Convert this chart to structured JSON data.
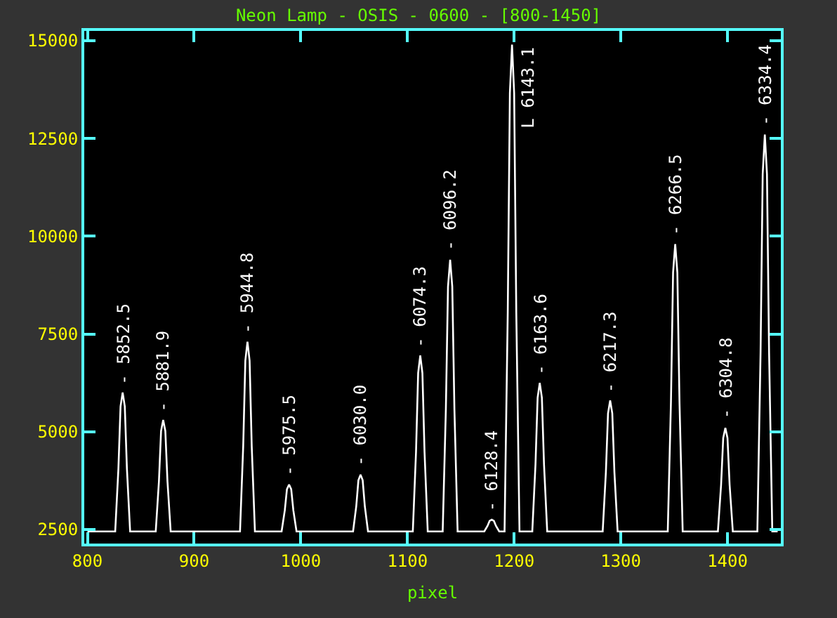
{
  "chart_data": {
    "type": "line",
    "title": "Neon Lamp - OSIS - 0600 - [800-1450]",
    "xlabel": "pixel",
    "x": [
      800,
      826,
      829,
      831,
      833,
      835,
      837,
      840,
      864,
      867,
      869,
      871,
      873,
      875,
      878,
      943,
      946,
      948,
      950,
      952,
      954,
      957,
      982,
      985,
      987,
      989,
      991,
      993,
      996,
      1049,
      1052,
      1054,
      1056,
      1058,
      1060,
      1063,
      1105,
      1108,
      1110,
      1112,
      1114,
      1116,
      1119,
      1133,
      1136,
      1138,
      1140,
      1142,
      1144,
      1147,
      1172,
      1175,
      1177,
      1179,
      1181,
      1183,
      1186,
      1191,
      1194,
      1196,
      1198,
      1200,
      1202,
      1205,
      1217,
      1220,
      1222,
      1224,
      1226,
      1228,
      1231,
      1283,
      1286,
      1288,
      1290,
      1292,
      1294,
      1297,
      1344,
      1347,
      1349,
      1351,
      1353,
      1355,
      1358,
      1391,
      1394,
      1396,
      1398,
      1400,
      1402,
      1405,
      1428,
      1431,
      1433,
      1435,
      1437,
      1439,
      1442,
      1447
    ],
    "series": [
      {
        "color": "#ffffff",
        "values": [
          2450,
          2450,
          4050,
          5650,
          6000,
          5650,
          4050,
          2450,
          2450,
          3730,
          5020,
          5300,
          5020,
          3730,
          2450,
          2450,
          4630,
          6820,
          7300,
          6820,
          4630,
          2450,
          2450,
          2990,
          3530,
          3650,
          3530,
          2990,
          2450,
          2450,
          3100,
          3760,
          3900,
          3760,
          3100,
          2450,
          2450,
          4480,
          6500,
          6950,
          6500,
          4480,
          2450,
          2450,
          5580,
          8710,
          9400,
          8710,
          5580,
          2450,
          2450,
          2590,
          2720,
          2750,
          2720,
          2590,
          2450,
          2450,
          8050,
          13660,
          14900,
          13660,
          8050,
          2450,
          2450,
          4160,
          5870,
          6250,
          5870,
          4160,
          2450,
          2450,
          3960,
          5470,
          5800,
          5470,
          3960,
          2450,
          2450,
          5760,
          9070,
          9800,
          9070,
          5760,
          2450,
          2450,
          3640,
          4840,
          5100,
          4840,
          3640,
          2450,
          2450,
          7020,
          11590,
          12600,
          11590,
          7020,
          2450,
          2450
        ]
      }
    ],
    "xlim": [
      797,
      1450
    ],
    "ylim": [
      2140,
      15250
    ],
    "xticks": [
      800,
      900,
      1000,
      1100,
      1200,
      1300,
      1400
    ],
    "yticks": [
      2500,
      5000,
      7500,
      10000,
      12500,
      15000
    ],
    "marker": "none",
    "line_style": "solid",
    "annotations": [
      {
        "text": "- 5852.5",
        "x": 833,
        "y": 6000
      },
      {
        "text": "- 5881.9",
        "x": 871,
        "y": 5300
      },
      {
        "text": "- 5944.8",
        "x": 950,
        "y": 7300
      },
      {
        "text": "- 5975.5",
        "x": 989,
        "y": 3650
      },
      {
        "text": "- 6030.0",
        "x": 1056,
        "y": 3900
      },
      {
        "text": "- 6074.3",
        "x": 1112,
        "y": 6950
      },
      {
        "text": "- 6096.2",
        "x": 1140,
        "y": 9400
      },
      {
        "text": "- 6128.4",
        "x": 1179,
        "y": 2750
      },
      {
        "text": "L 6143.1",
        "x": 1198,
        "y": 14900
      },
      {
        "text": "- 6163.6",
        "x": 1224,
        "y": 6250
      },
      {
        "text": "- 6217.3",
        "x": 1290,
        "y": 5800
      },
      {
        "text": "- 6266.5",
        "x": 1351,
        "y": 9800
      },
      {
        "text": "- 6304.8",
        "x": 1398,
        "y": 5100
      },
      {
        "text": "- 6334.4",
        "x": 1435,
        "y": 12600
      }
    ]
  }
}
